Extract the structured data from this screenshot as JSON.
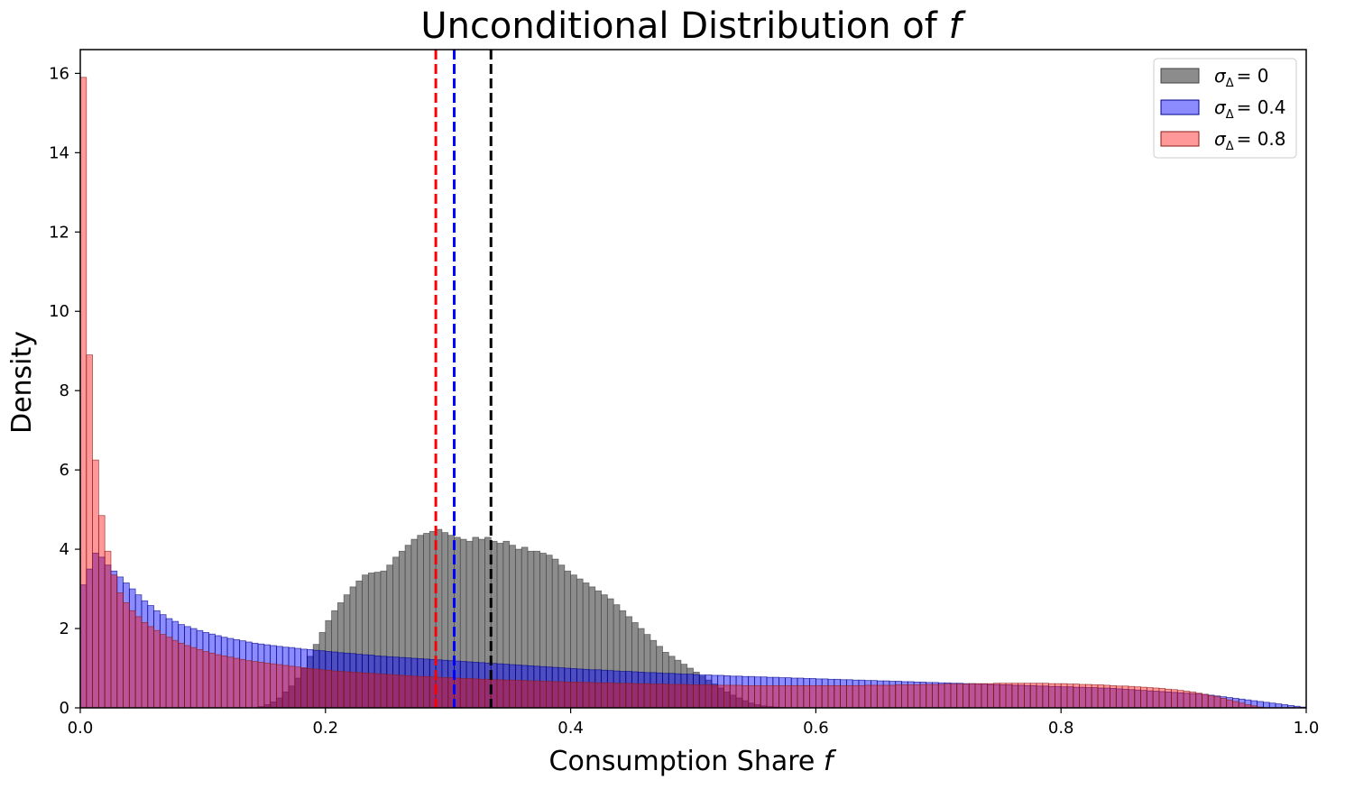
{
  "chart_data": {
    "type": "bar",
    "title": "Unconditional Distribution of f",
    "xlabel": "Consumption Share f",
    "ylabel": "Density",
    "xlim": [
      0.0,
      1.0
    ],
    "ylim": [
      0,
      16.6
    ],
    "grid": false,
    "legend_position": "top-right",
    "x_ticks": [
      "0.0",
      "0.2",
      "0.4",
      "0.6",
      "0.8",
      "1.0"
    ],
    "y_ticks": [
      "0",
      "2",
      "4",
      "6",
      "8",
      "10",
      "12",
      "14",
      "16"
    ],
    "bin_width": 0.005,
    "series": [
      {
        "name": "σΔ = 0",
        "legend_symbol": "σ",
        "legend_sub": "Δ",
        "legend_value": "= 0",
        "color": "#808080",
        "edge_color": "#404040",
        "alpha": 0.9,
        "mean_line": 0.335,
        "mean_line_color": "#000000",
        "density": [
          0,
          0,
          0,
          0,
          0,
          0,
          0,
          0,
          0,
          0,
          0,
          0,
          0,
          0,
          0,
          0,
          0,
          0,
          0,
          0,
          0,
          0,
          0,
          0,
          0,
          0,
          0,
          0,
          0,
          0.03,
          0.08,
          0.15,
          0.25,
          0.4,
          0.55,
          0.75,
          1.0,
          1.3,
          1.6,
          1.9,
          2.2,
          2.45,
          2.65,
          2.85,
          3.05,
          3.2,
          3.35,
          3.4,
          3.42,
          3.45,
          3.6,
          3.8,
          3.95,
          4.1,
          4.25,
          4.35,
          4.4,
          4.45,
          4.5,
          4.42,
          4.35,
          4.3,
          4.25,
          4.2,
          4.3,
          4.25,
          4.3,
          4.2,
          4.15,
          4.2,
          4.1,
          4.0,
          4.05,
          3.95,
          3.95,
          3.9,
          3.85,
          3.75,
          3.6,
          3.45,
          3.35,
          3.25,
          3.15,
          3.05,
          2.95,
          2.85,
          2.75,
          2.6,
          2.45,
          2.3,
          2.15,
          2.0,
          1.85,
          1.7,
          1.55,
          1.4,
          1.3,
          1.2,
          1.1,
          1.0,
          0.9,
          0.8,
          0.7,
          0.6,
          0.5,
          0.4,
          0.32,
          0.25,
          0.18,
          0.12,
          0.08,
          0.05,
          0.03,
          0.02,
          0.01,
          0,
          0,
          0,
          0,
          0,
          0,
          0,
          0,
          0,
          0,
          0,
          0,
          0,
          0,
          0,
          0,
          0,
          0,
          0,
          0,
          0,
          0,
          0,
          0,
          0,
          0,
          0,
          0,
          0,
          0,
          0,
          0,
          0,
          0,
          0,
          0,
          0,
          0,
          0,
          0,
          0,
          0,
          0,
          0,
          0,
          0,
          0,
          0,
          0,
          0,
          0,
          0,
          0,
          0,
          0,
          0,
          0,
          0,
          0,
          0,
          0,
          0,
          0,
          0,
          0,
          0,
          0,
          0,
          0,
          0,
          0,
          0,
          0,
          0,
          0,
          0,
          0,
          0,
          0,
          0,
          0,
          0,
          0,
          0,
          0,
          0,
          0,
          0,
          0,
          0
        ]
      },
      {
        "name": "σΔ = 0.4",
        "legend_symbol": "σ",
        "legend_sub": "Δ",
        "legend_value": "= 0.4",
        "color": "#0000ff",
        "edge_color": "#00008a",
        "alpha": 0.45,
        "mean_line": 0.305,
        "mean_line_color": "#0000ff",
        "density": [
          3.1,
          3.5,
          3.9,
          3.8,
          3.6,
          3.45,
          3.3,
          3.15,
          3.0,
          2.85,
          2.7,
          2.58,
          2.45,
          2.35,
          2.25,
          2.18,
          2.1,
          2.05,
          2.0,
          1.95,
          1.9,
          1.86,
          1.82,
          1.78,
          1.75,
          1.72,
          1.69,
          1.66,
          1.63,
          1.61,
          1.59,
          1.57,
          1.55,
          1.53,
          1.52,
          1.5,
          1.48,
          1.47,
          1.45,
          1.44,
          1.42,
          1.41,
          1.39,
          1.38,
          1.37,
          1.35,
          1.34,
          1.33,
          1.31,
          1.3,
          1.29,
          1.28,
          1.27,
          1.26,
          1.25,
          1.24,
          1.23,
          1.22,
          1.21,
          1.2,
          1.19,
          1.18,
          1.17,
          1.16,
          1.15,
          1.14,
          1.13,
          1.12,
          1.11,
          1.1,
          1.09,
          1.08,
          1.07,
          1.06,
          1.05,
          1.04,
          1.03,
          1.02,
          1.01,
          1.0,
          0.99,
          0.98,
          0.97,
          0.96,
          0.96,
          0.95,
          0.94,
          0.93,
          0.92,
          0.92,
          0.91,
          0.9,
          0.89,
          0.89,
          0.88,
          0.87,
          0.87,
          0.86,
          0.85,
          0.85,
          0.84,
          0.83,
          0.83,
          0.82,
          0.82,
          0.81,
          0.8,
          0.8,
          0.79,
          0.79,
          0.78,
          0.78,
          0.77,
          0.77,
          0.76,
          0.76,
          0.75,
          0.75,
          0.74,
          0.74,
          0.73,
          0.73,
          0.72,
          0.72,
          0.71,
          0.71,
          0.7,
          0.7,
          0.69,
          0.69,
          0.68,
          0.68,
          0.67,
          0.67,
          0.66,
          0.66,
          0.65,
          0.65,
          0.64,
          0.64,
          0.63,
          0.63,
          0.62,
          0.62,
          0.61,
          0.61,
          0.6,
          0.6,
          0.59,
          0.59,
          0.58,
          0.58,
          0.57,
          0.57,
          0.56,
          0.56,
          0.55,
          0.55,
          0.54,
          0.54,
          0.53,
          0.53,
          0.52,
          0.52,
          0.51,
          0.51,
          0.5,
          0.5,
          0.49,
          0.48,
          0.47,
          0.46,
          0.45,
          0.44,
          0.43,
          0.42,
          0.41,
          0.4,
          0.39,
          0.38,
          0.37,
          0.36,
          0.35,
          0.34,
          0.32,
          0.3,
          0.28,
          0.26,
          0.24,
          0.22,
          0.2,
          0.18,
          0.16,
          0.14,
          0.12,
          0.1,
          0.08,
          0.06,
          0.04,
          0.02
        ]
      },
      {
        "name": "σΔ = 0.8",
        "legend_symbol": "σ",
        "legend_sub": "Δ",
        "legend_value": "= 0.8",
        "color": "#ff0000",
        "edge_color": "#8b1a1a",
        "alpha": 0.4,
        "mean_line": 0.29,
        "mean_line_color": "#ff0000",
        "density": [
          15.9,
          8.9,
          6.25,
          4.85,
          3.95,
          3.35,
          2.9,
          2.65,
          2.45,
          2.3,
          2.15,
          2.05,
          1.95,
          1.85,
          1.78,
          1.7,
          1.63,
          1.57,
          1.52,
          1.47,
          1.42,
          1.38,
          1.34,
          1.31,
          1.28,
          1.25,
          1.22,
          1.19,
          1.17,
          1.15,
          1.13,
          1.11,
          1.09,
          1.07,
          1.05,
          1.03,
          1.01,
          0.99,
          0.98,
          0.96,
          0.95,
          0.93,
          0.92,
          0.91,
          0.9,
          0.89,
          0.88,
          0.87,
          0.86,
          0.85,
          0.84,
          0.83,
          0.82,
          0.81,
          0.8,
          0.79,
          0.79,
          0.78,
          0.77,
          0.76,
          0.76,
          0.75,
          0.74,
          0.74,
          0.73,
          0.72,
          0.72,
          0.71,
          0.71,
          0.7,
          0.7,
          0.69,
          0.69,
          0.68,
          0.68,
          0.67,
          0.67,
          0.66,
          0.66,
          0.65,
          0.65,
          0.65,
          0.64,
          0.64,
          0.63,
          0.63,
          0.63,
          0.62,
          0.62,
          0.62,
          0.61,
          0.61,
          0.61,
          0.6,
          0.6,
          0.6,
          0.59,
          0.59,
          0.59,
          0.58,
          0.58,
          0.58,
          0.58,
          0.57,
          0.57,
          0.57,
          0.57,
          0.57,
          0.56,
          0.56,
          0.56,
          0.56,
          0.56,
          0.56,
          0.56,
          0.56,
          0.56,
          0.56,
          0.56,
          0.56,
          0.56,
          0.56,
          0.56,
          0.56,
          0.56,
          0.56,
          0.56,
          0.56,
          0.57,
          0.57,
          0.57,
          0.57,
          0.57,
          0.58,
          0.58,
          0.58,
          0.58,
          0.59,
          0.59,
          0.59,
          0.59,
          0.6,
          0.6,
          0.6,
          0.6,
          0.61,
          0.61,
          0.61,
          0.61,
          0.62,
          0.62,
          0.62,
          0.62,
          0.62,
          0.62,
          0.62,
          0.62,
          0.62,
          0.61,
          0.61,
          0.61,
          0.6,
          0.6,
          0.59,
          0.59,
          0.58,
          0.58,
          0.57,
          0.56,
          0.55,
          0.55,
          0.54,
          0.53,
          0.52,
          0.51,
          0.5,
          0.49,
          0.47,
          0.46,
          0.44,
          0.42,
          0.4,
          0.37,
          0.34,
          0.31,
          0.28,
          0.24,
          0.2,
          0.16,
          0.12,
          0.08,
          0.05,
          0.02,
          0
        ]
      }
    ]
  }
}
